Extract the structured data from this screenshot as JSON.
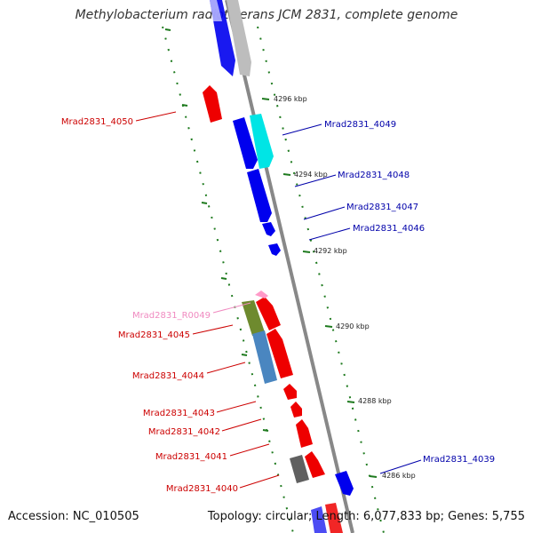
{
  "title": "Methylobacterium radiotolerans JCM 2831, complete genome",
  "accession": "Accession: NC_010505",
  "summary": "Topology: circular; Length: 6,077,833 bp; Genes: 5,755",
  "colors": {
    "backbone": "#808080",
    "ticks": "#1e7a1e",
    "forward": "#0000ee",
    "reverse": "#ee0000",
    "rrna": "#ff9ac8",
    "cyan": "#00e5e5",
    "grey": "#bdbdbd",
    "olive": "#6e8a2e",
    "steel": "#4a86c0",
    "dark": "#606060"
  },
  "ruler": [
    {
      "label": "4296 kbp"
    },
    {
      "label": "4294 kbp"
    },
    {
      "label": "4292 kbp"
    },
    {
      "label": "4290 kbp"
    },
    {
      "label": "4288 kbp"
    },
    {
      "label": "4286 kbp"
    }
  ],
  "genes": [
    {
      "label": "Mrad2831_4050",
      "color": "#cc0000"
    },
    {
      "label": "Mrad2831_4049",
      "color": "#0000aa"
    },
    {
      "label": "Mrad2831_4048",
      "color": "#0000aa"
    },
    {
      "label": "Mrad2831_4047",
      "color": "#0000aa"
    },
    {
      "label": "Mrad2831_4046",
      "color": "#0000aa"
    },
    {
      "label": "Mrad2831_R0049",
      "color": "#f08ac0"
    },
    {
      "label": "Mrad2831_4045",
      "color": "#cc0000"
    },
    {
      "label": "Mrad2831_4044",
      "color": "#cc0000"
    },
    {
      "label": "Mrad2831_4043",
      "color": "#cc0000"
    },
    {
      "label": "Mrad2831_4042",
      "color": "#cc0000"
    },
    {
      "label": "Mrad2831_4041",
      "color": "#cc0000"
    },
    {
      "label": "Mrad2831_4040",
      "color": "#cc0000"
    },
    {
      "label": "Mrad2831_4039",
      "color": "#0000aa"
    }
  ]
}
